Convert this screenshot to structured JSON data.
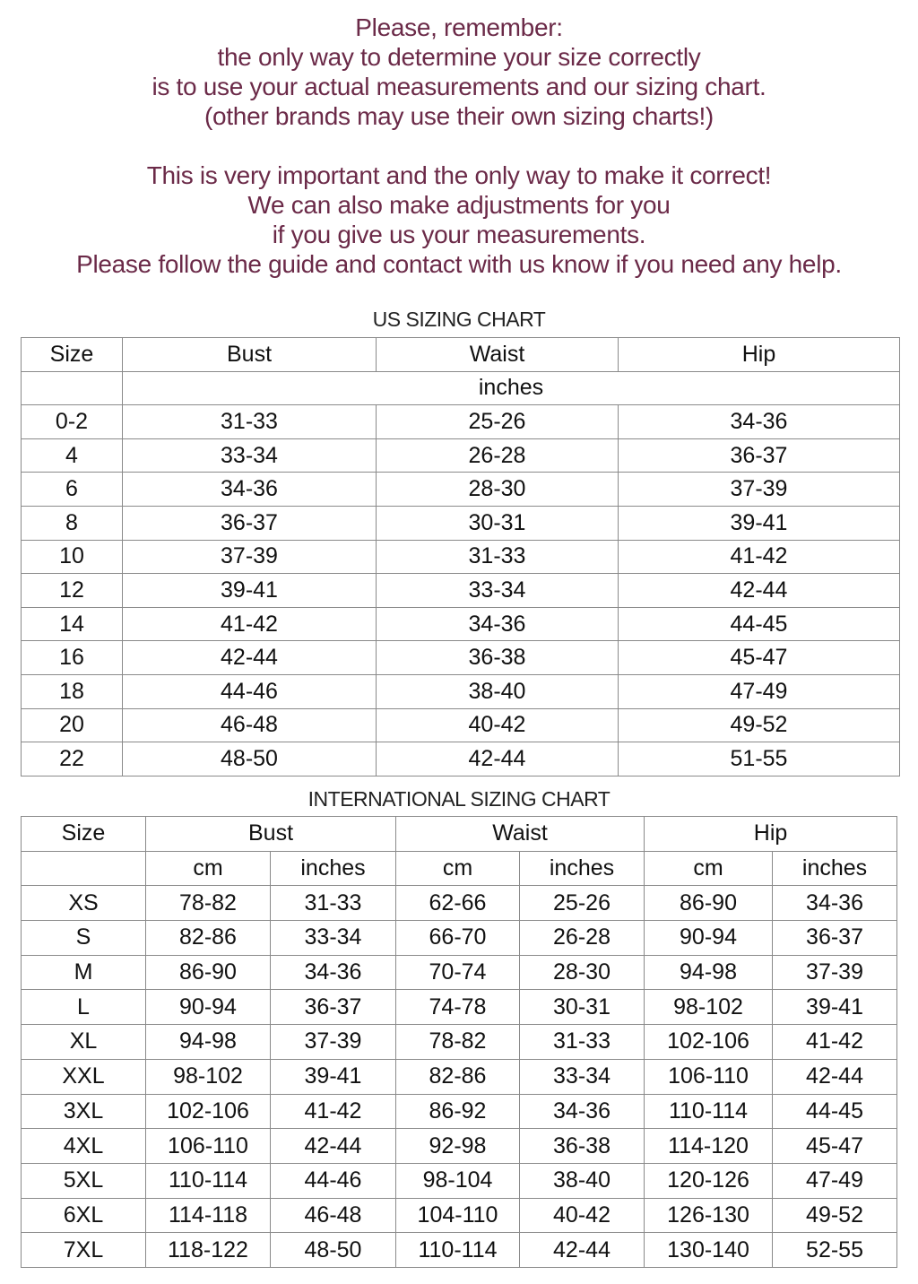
{
  "notice": {
    "lines": [
      "Please, remember:",
      "the only way to determine your size correctly",
      "is to use your actual measurements and our sizing chart.",
      "(other brands may use their own sizing charts!)",
      "",
      "This is very important and the only way to make it correct!",
      "We can also make adjustments for you",
      "if you give us your measurements.",
      "Please follow the guide and contact with us know if you need any help."
    ],
    "color": "#6b2a48"
  },
  "us_chart": {
    "title": "US SIZING CHART",
    "headers": [
      "Size",
      "Bust",
      "Waist",
      "Hip"
    ],
    "unit": "inches",
    "rows": [
      [
        "0-2",
        "31-33",
        "25-26",
        "34-36"
      ],
      [
        "4",
        "33-34",
        "26-28",
        "36-37"
      ],
      [
        "6",
        "34-36",
        "28-30",
        "37-39"
      ],
      [
        "8",
        "36-37",
        "30-31",
        "39-41"
      ],
      [
        "10",
        "37-39",
        "31-33",
        "41-42"
      ],
      [
        "12",
        "39-41",
        "33-34",
        "42-44"
      ],
      [
        "14",
        "41-42",
        "34-36",
        "44-45"
      ],
      [
        "16",
        "42-44",
        "36-38",
        "45-47"
      ],
      [
        "18",
        "44-46",
        "38-40",
        "47-49"
      ],
      [
        "20",
        "46-48",
        "40-42",
        "49-52"
      ],
      [
        "22",
        "48-50",
        "42-44",
        "51-55"
      ]
    ]
  },
  "intl_chart": {
    "title": "INTERNATIONAL SIZING CHART",
    "headers": [
      "Size",
      "Bust",
      "Waist",
      "Hip"
    ],
    "units": [
      "cm",
      "inches",
      "cm",
      "inches",
      "cm",
      "inches"
    ],
    "rows": [
      [
        "XS",
        "78-82",
        "31-33",
        "62-66",
        "25-26",
        "86-90",
        "34-36"
      ],
      [
        "S",
        "82-86",
        "33-34",
        "66-70",
        "26-28",
        "90-94",
        "36-37"
      ],
      [
        "M",
        "86-90",
        "34-36",
        "70-74",
        "28-30",
        "94-98",
        "37-39"
      ],
      [
        "L",
        "90-94",
        "36-37",
        "74-78",
        "30-31",
        "98-102",
        "39-41"
      ],
      [
        "XL",
        "94-98",
        "37-39",
        "78-82",
        "31-33",
        "102-106",
        "41-42"
      ],
      [
        "XXL",
        "98-102",
        "39-41",
        "82-86",
        "33-34",
        "106-110",
        "42-44"
      ],
      [
        "3XL",
        "102-106",
        "41-42",
        "86-92",
        "34-36",
        "110-114",
        "44-45"
      ],
      [
        "4XL",
        "106-110",
        "42-44",
        "92-98",
        "36-38",
        "114-120",
        "45-47"
      ],
      [
        "5XL",
        "110-114",
        "44-46",
        "98-104",
        "38-40",
        "120-126",
        "47-49"
      ],
      [
        "6XL",
        "114-118",
        "46-48",
        "104-110",
        "40-42",
        "126-130",
        "49-52"
      ],
      [
        "7XL",
        "118-122",
        "48-50",
        "110-114",
        "42-44",
        "130-140",
        "52-55"
      ]
    ]
  }
}
